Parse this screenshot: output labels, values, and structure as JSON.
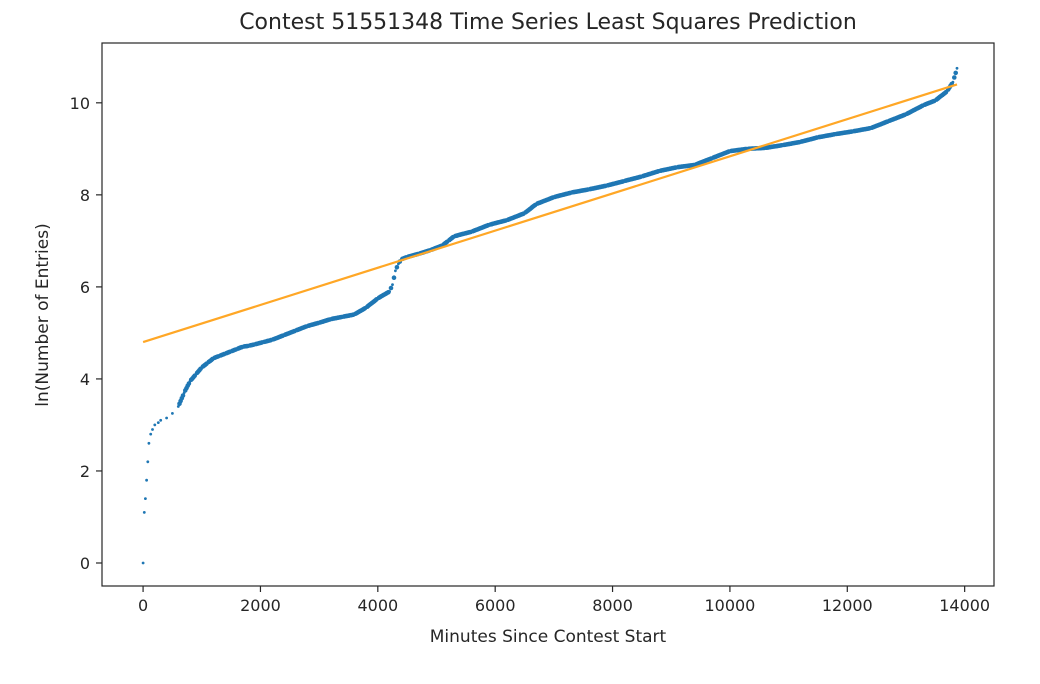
{
  "chart_data": {
    "type": "scatter",
    "title": "Contest 51551348 Time Series Least Squares Prediction",
    "xlabel": "Minutes Since Contest Start",
    "ylabel": "ln(Number of Entries)",
    "xlim": [
      -700,
      14500
    ],
    "ylim": [
      -0.5,
      11.3
    ],
    "xticks": [
      0,
      2000,
      4000,
      6000,
      8000,
      10000,
      12000,
      14000
    ],
    "yticks": [
      0,
      2,
      4,
      6,
      8,
      10
    ],
    "grid": false,
    "series": [
      {
        "kind": "scatter",
        "color": "#1f77b4",
        "points": [
          [
            0,
            0.0
          ],
          [
            20,
            1.1
          ],
          [
            40,
            1.4
          ],
          [
            60,
            1.8
          ],
          [
            80,
            2.2
          ],
          [
            100,
            2.6
          ],
          [
            130,
            2.8
          ],
          [
            160,
            2.9
          ],
          [
            200,
            3.0
          ],
          [
            260,
            3.05
          ],
          [
            300,
            3.1
          ],
          [
            400,
            3.15
          ],
          [
            500,
            3.25
          ],
          [
            600,
            3.4
          ],
          [
            700,
            3.7
          ],
          [
            800,
            3.95
          ],
          [
            900,
            4.1
          ],
          [
            1000,
            4.25
          ],
          [
            1100,
            4.35
          ],
          [
            1200,
            4.45
          ],
          [
            1300,
            4.5
          ],
          [
            1400,
            4.55
          ],
          [
            1500,
            4.6
          ],
          [
            1600,
            4.65
          ],
          [
            1700,
            4.7
          ],
          [
            1800,
            4.72
          ],
          [
            1900,
            4.75
          ],
          [
            2050,
            4.8
          ],
          [
            2200,
            4.85
          ],
          [
            2400,
            4.95
          ],
          [
            2600,
            5.05
          ],
          [
            2800,
            5.15
          ],
          [
            3000,
            5.22
          ],
          [
            3200,
            5.3
          ],
          [
            3400,
            5.35
          ],
          [
            3600,
            5.4
          ],
          [
            3800,
            5.55
          ],
          [
            4000,
            5.75
          ],
          [
            4200,
            5.9
          ],
          [
            4250,
            6.05
          ],
          [
            4300,
            6.35
          ],
          [
            4350,
            6.5
          ],
          [
            4400,
            6.6
          ],
          [
            4500,
            6.65
          ],
          [
            4700,
            6.72
          ],
          [
            4900,
            6.8
          ],
          [
            5100,
            6.9
          ],
          [
            5200,
            7.0
          ],
          [
            5300,
            7.1
          ],
          [
            5600,
            7.2
          ],
          [
            5900,
            7.35
          ],
          [
            6200,
            7.45
          ],
          [
            6500,
            7.6
          ],
          [
            6700,
            7.8
          ],
          [
            7000,
            7.95
          ],
          [
            7300,
            8.05
          ],
          [
            7600,
            8.12
          ],
          [
            7900,
            8.2
          ],
          [
            8200,
            8.3
          ],
          [
            8500,
            8.4
          ],
          [
            8800,
            8.52
          ],
          [
            9100,
            8.6
          ],
          [
            9400,
            8.65
          ],
          [
            9700,
            8.8
          ],
          [
            10000,
            8.95
          ],
          [
            10300,
            9.0
          ],
          [
            10600,
            9.02
          ],
          [
            10900,
            9.08
          ],
          [
            11200,
            9.15
          ],
          [
            11500,
            9.25
          ],
          [
            11800,
            9.32
          ],
          [
            12100,
            9.38
          ],
          [
            12400,
            9.45
          ],
          [
            12700,
            9.6
          ],
          [
            13000,
            9.75
          ],
          [
            13300,
            9.95
          ],
          [
            13500,
            10.05
          ],
          [
            13700,
            10.25
          ],
          [
            13800,
            10.45
          ],
          [
            13870,
            10.75
          ]
        ]
      },
      {
        "kind": "line",
        "color": "#ffa726",
        "points": [
          [
            0,
            4.8
          ],
          [
            13870,
            10.4
          ]
        ]
      }
    ]
  }
}
